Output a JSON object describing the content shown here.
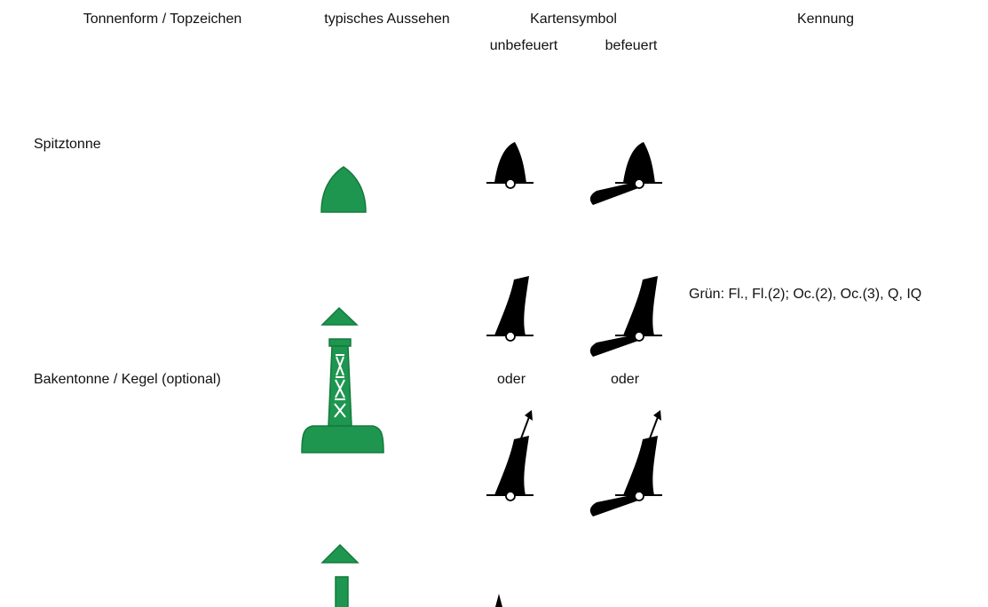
{
  "header": {
    "columns": [
      "Tonnenform / Topzeichen",
      "typisches Aussehen",
      "Kartensymbol",
      "Kennung"
    ],
    "chart_symbol_sub": [
      "unbefeuert",
      "befeuert"
    ]
  },
  "rows": [
    {
      "label": "Spitztonne"
    },
    {
      "label": "Bakentonne / Kegel (optional)",
      "alternatives": [
        "oder",
        "oder"
      ]
    }
  ],
  "kennung": "Grün: Fl., Fl.(2); Oc.(2), Oc.(3), Q, IQ"
}
